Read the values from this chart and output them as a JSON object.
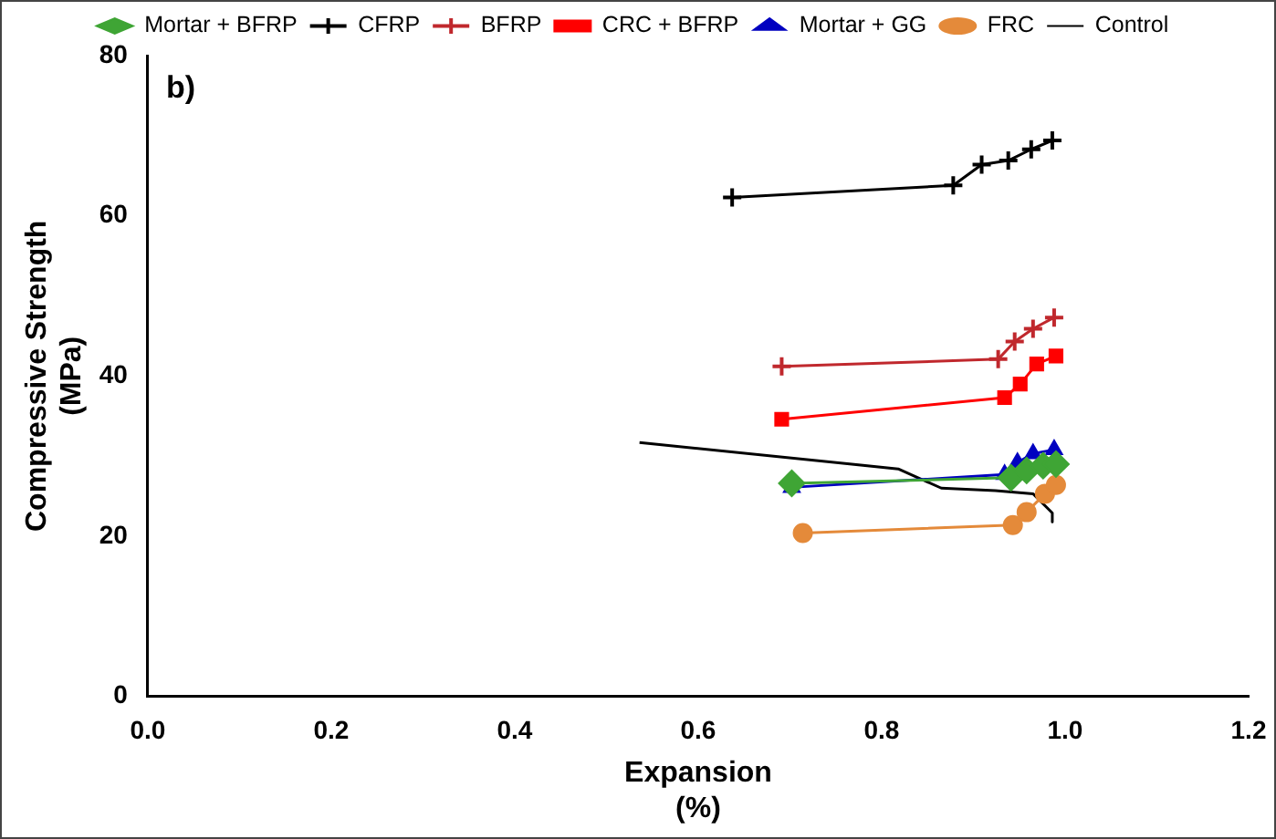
{
  "chart_data": {
    "type": "line",
    "xlabel": "Expansion\n(%)",
    "ylabel": "Compressive Strength\n(MPa)",
    "annotations": [
      "b)"
    ],
    "xlim": [
      0,
      1.2
    ],
    "xticks": [
      {
        "value": 0,
        "label": "0.0"
      },
      {
        "value": 0.2,
        "label": "0.2"
      },
      {
        "value": 0.4,
        "label": "0.4"
      },
      {
        "value": 0.6,
        "label": "0.6"
      },
      {
        "value": 0.8,
        "label": "0.8"
      },
      {
        "value": 1,
        "label": "1.0"
      },
      {
        "value": 1.2,
        "label": "1.2"
      }
    ],
    "ylim": [
      0,
      80
    ],
    "yticks": [
      0,
      20,
      40,
      60,
      80
    ],
    "grid": false,
    "legend": "top",
    "series": [
      {
        "name": "CFRP",
        "color": "#000000",
        "marker": "cross",
        "x": [
          0.637,
          0.878,
          0.909,
          0.938,
          0.963,
          0.986
        ],
        "values": [
          62.3,
          63.8,
          66.4,
          66.9,
          68.3,
          69.4
        ]
      },
      {
        "name": "BFRP",
        "color": "#c0282d",
        "marker": "cross",
        "x": [
          0.691,
          0.927,
          0.945,
          0.965,
          0.988
        ],
        "values": [
          41.2,
          42.1,
          44.3,
          45.9,
          47.3
        ]
      },
      {
        "name": "CRC + BFRP",
        "color": "#ff0000",
        "marker": "square",
        "x": [
          0.691,
          0.934,
          0.951,
          0.969,
          0.99
        ],
        "values": [
          34.6,
          37.3,
          39,
          41.5,
          42.5
        ]
      },
      {
        "name": "Mortar + GG",
        "color": "#0000c0",
        "marker": "triangle",
        "x": [
          0.702,
          0.934,
          0.948,
          0.965,
          0.988
        ],
        "values": [
          26.1,
          27.7,
          29.2,
          30.3,
          30.8
        ]
      },
      {
        "name": "Mortar + BFRP",
        "color": "#3fa535",
        "marker": "diamond",
        "x": [
          0.702,
          0.941,
          0.958,
          0.976,
          0.99
        ],
        "values": [
          26.6,
          27.3,
          28.2,
          28.8,
          29
        ]
      },
      {
        "name": "FRC",
        "color": "#e48a3a",
        "marker": "circle",
        "x": [
          0.714,
          0.943,
          0.958,
          0.978,
          0.99
        ],
        "values": [
          20.4,
          21.4,
          23,
          25.3,
          26.4
        ]
      },
      {
        "name": "Control",
        "color": "#000000",
        "marker": "none",
        "x": [
          0.536,
          0.818,
          0.865,
          0.924,
          0.965,
          0.986,
          0.986
        ],
        "values": [
          31.7,
          28.4,
          26,
          25.7,
          25.3,
          22.9,
          21.8
        ]
      }
    ]
  }
}
